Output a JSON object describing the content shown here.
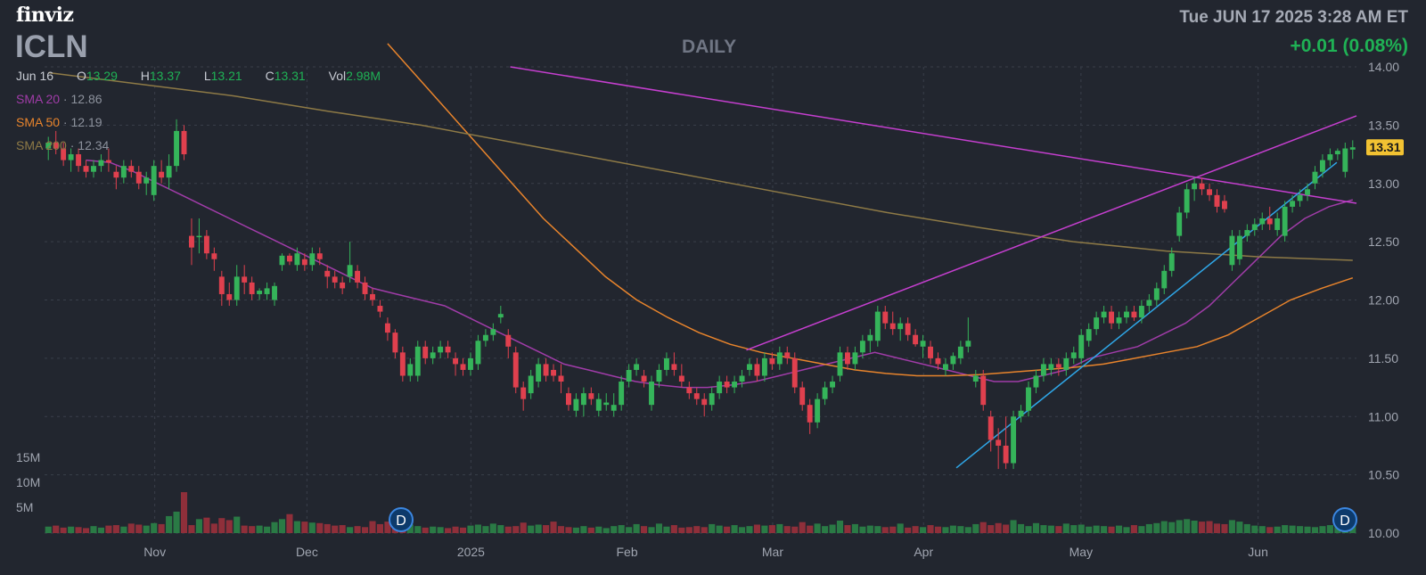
{
  "header": {
    "logo": "finviz",
    "ticker": "ICLN",
    "timeframe": "DAILY",
    "datetime": "Tue JUN 17 2025 3:28 AM ET",
    "change": "+0.01 (0.08%)"
  },
  "ohlc": {
    "date": "Jun 16",
    "o_label": "O",
    "o": "13.29",
    "h_label": "H",
    "h": "13.37",
    "l_label": "L",
    "l": "13.21",
    "c_label": "C",
    "c": "13.31",
    "vol_label": "Vol",
    "vol": "2.98M"
  },
  "sma": [
    {
      "label": "SMA 20",
      "value": "12.86",
      "color": "#a03ca8"
    },
    {
      "label": "SMA 50",
      "value": "12.19",
      "color": "#e8842c"
    },
    {
      "label": "SMA 200",
      "value": "12.34",
      "color": "#8e7a46"
    }
  ],
  "last_price_label": "13.31",
  "earnings_marker": "D",
  "colors": {
    "background": "#22262f",
    "up": "#35b45a",
    "down": "#e0404e",
    "trendline_magenta": "#c53fcf",
    "trendline_blue": "#2fa7e8",
    "price_tag": "#f2c232"
  },
  "chart_data": {
    "type": "candlestick",
    "title": "ICLN",
    "ylim": [
      10.0,
      14.0
    ],
    "y_ticks": [
      "14.00",
      "13.50",
      "13.00",
      "12.50",
      "12.00",
      "11.50",
      "11.00",
      "10.50",
      "10.00"
    ],
    "x_ticks": [
      "Nov",
      "Dec",
      "2025",
      "Feb",
      "Mar",
      "Apr",
      "May",
      "Jun"
    ],
    "volume_ticks": [
      "15M",
      "10M",
      "5M"
    ],
    "grid": true,
    "candles": [
      [
        13.3,
        13.4,
        13.2,
        13.35
      ],
      [
        13.35,
        13.45,
        13.25,
        13.3
      ],
      [
        13.3,
        13.35,
        13.15,
        13.2
      ],
      [
        13.2,
        13.3,
        13.1,
        13.25
      ],
      [
        13.25,
        13.3,
        13.1,
        13.15
      ],
      [
        13.15,
        13.2,
        13.05,
        13.1
      ],
      [
        13.1,
        13.2,
        13.05,
        13.15
      ],
      [
        13.15,
        13.25,
        13.1,
        13.2
      ],
      [
        13.2,
        13.3,
        13.1,
        13.18
      ],
      [
        13.1,
        13.15,
        12.95,
        13.05
      ],
      [
        13.05,
        13.2,
        13.0,
        13.15
      ],
      [
        13.15,
        13.2,
        13.05,
        13.1
      ],
      [
        13.1,
        13.15,
        12.95,
        13.0
      ],
      [
        13.0,
        13.1,
        12.9,
        13.05
      ],
      [
        12.9,
        13.2,
        12.85,
        13.15
      ],
      [
        13.1,
        13.2,
        13.0,
        13.05
      ],
      [
        13.05,
        13.25,
        12.95,
        13.15
      ],
      [
        13.15,
        13.55,
        13.1,
        13.45
      ],
      [
        13.45,
        13.5,
        13.2,
        13.25
      ],
      [
        12.55,
        12.7,
        12.3,
        12.45
      ],
      [
        12.55,
        12.7,
        12.4,
        12.55
      ],
      [
        12.55,
        12.6,
        12.35,
        12.4
      ],
      [
        12.4,
        12.45,
        12.25,
        12.35
      ],
      [
        12.2,
        12.25,
        11.95,
        12.05
      ],
      [
        12.05,
        12.15,
        11.95,
        12.0
      ],
      [
        12.0,
        12.3,
        11.95,
        12.2
      ],
      [
        12.2,
        12.3,
        12.05,
        12.15
      ],
      [
        12.15,
        12.2,
        12.0,
        12.05
      ],
      [
        12.05,
        12.1,
        12.0,
        12.08
      ],
      [
        12.05,
        12.15,
        12.0,
        12.1
      ],
      [
        12.0,
        12.15,
        11.95,
        12.12
      ],
      [
        12.3,
        12.4,
        12.25,
        12.38
      ],
      [
        12.38,
        12.4,
        12.3,
        12.33
      ],
      [
        12.3,
        12.45,
        12.25,
        12.4
      ],
      [
        12.35,
        12.4,
        12.25,
        12.3
      ],
      [
        12.3,
        12.45,
        12.25,
        12.4
      ],
      [
        12.4,
        12.45,
        12.3,
        12.35
      ],
      [
        12.25,
        12.3,
        12.1,
        12.2
      ],
      [
        12.2,
        12.25,
        12.1,
        12.15
      ],
      [
        12.15,
        12.2,
        12.05,
        12.1
      ],
      [
        12.2,
        12.5,
        12.15,
        12.3
      ],
      [
        12.25,
        12.3,
        12.1,
        12.15
      ],
      [
        12.15,
        12.2,
        12.0,
        12.05
      ],
      [
        12.05,
        12.1,
        11.95,
        12.0
      ],
      [
        11.95,
        12.0,
        11.85,
        11.9
      ],
      [
        11.8,
        11.85,
        11.65,
        11.72
      ],
      [
        11.72,
        11.75,
        11.5,
        11.55
      ],
      [
        11.55,
        11.6,
        11.3,
        11.35
      ],
      [
        11.35,
        11.5,
        11.3,
        11.45
      ],
      [
        11.35,
        11.65,
        11.3,
        11.6
      ],
      [
        11.6,
        11.65,
        11.45,
        11.5
      ],
      [
        11.5,
        11.6,
        11.45,
        11.55
      ],
      [
        11.55,
        11.65,
        11.5,
        11.6
      ],
      [
        11.6,
        11.65,
        11.5,
        11.55
      ],
      [
        11.5,
        11.55,
        11.35,
        11.45
      ],
      [
        11.45,
        11.5,
        11.35,
        11.4
      ],
      [
        11.4,
        11.55,
        11.35,
        11.5
      ],
      [
        11.45,
        11.7,
        11.4,
        11.65
      ],
      [
        11.65,
        11.75,
        11.6,
        11.7
      ],
      [
        11.7,
        11.8,
        11.65,
        11.75
      ],
      [
        11.85,
        11.95,
        11.8,
        11.88
      ],
      [
        11.7,
        11.75,
        11.5,
        11.6
      ],
      [
        11.55,
        11.6,
        11.2,
        11.25
      ],
      [
        11.25,
        11.3,
        11.05,
        11.15
      ],
      [
        11.2,
        11.4,
        11.15,
        11.35
      ],
      [
        11.3,
        11.5,
        11.25,
        11.45
      ],
      [
        11.45,
        11.5,
        11.3,
        11.35
      ],
      [
        11.4,
        11.45,
        11.3,
        11.35
      ],
      [
        11.35,
        11.45,
        11.2,
        11.3
      ],
      [
        11.2,
        11.25,
        11.05,
        11.1
      ],
      [
        11.05,
        11.2,
        11.0,
        11.15
      ],
      [
        11.1,
        11.25,
        11.0,
        11.2
      ],
      [
        11.2,
        11.25,
        11.1,
        11.15
      ],
      [
        11.05,
        11.2,
        11.0,
        11.15
      ],
      [
        11.1,
        11.2,
        11.05,
        11.12
      ],
      [
        11.05,
        11.2,
        11.0,
        11.1
      ],
      [
        11.1,
        11.35,
        11.05,
        11.3
      ],
      [
        11.3,
        11.45,
        11.25,
        11.4
      ],
      [
        11.4,
        11.5,
        11.35,
        11.45
      ],
      [
        11.35,
        11.4,
        11.25,
        11.3
      ],
      [
        11.1,
        11.35,
        11.05,
        11.3
      ],
      [
        11.3,
        11.45,
        11.25,
        11.4
      ],
      [
        11.4,
        11.55,
        11.35,
        11.5
      ],
      [
        11.45,
        11.55,
        11.35,
        11.4
      ],
      [
        11.35,
        11.45,
        11.25,
        11.3
      ],
      [
        11.25,
        11.3,
        11.15,
        11.2
      ],
      [
        11.2,
        11.25,
        11.1,
        11.15
      ],
      [
        11.15,
        11.2,
        11.0,
        11.1
      ],
      [
        11.1,
        11.25,
        11.05,
        11.2
      ],
      [
        11.2,
        11.35,
        11.15,
        11.3
      ],
      [
        11.3,
        11.35,
        11.2,
        11.25
      ],
      [
        11.25,
        11.35,
        11.2,
        11.3
      ],
      [
        11.3,
        11.4,
        11.25,
        11.35
      ],
      [
        11.4,
        11.5,
        11.35,
        11.45
      ],
      [
        11.45,
        11.5,
        11.3,
        11.35
      ],
      [
        11.35,
        11.55,
        11.3,
        11.5
      ],
      [
        11.5,
        11.55,
        11.4,
        11.45
      ],
      [
        11.45,
        11.6,
        11.4,
        11.55
      ],
      [
        11.55,
        11.6,
        11.45,
        11.5
      ],
      [
        11.5,
        11.55,
        11.2,
        11.25
      ],
      [
        11.25,
        11.3,
        11.05,
        11.1
      ],
      [
        11.1,
        11.15,
        10.85,
        10.95
      ],
      [
        10.95,
        11.2,
        10.9,
        11.15
      ],
      [
        11.15,
        11.3,
        11.1,
        11.25
      ],
      [
        11.25,
        11.35,
        11.2,
        11.3
      ],
      [
        11.35,
        11.6,
        11.3,
        11.55
      ],
      [
        11.55,
        11.6,
        11.4,
        11.45
      ],
      [
        11.45,
        11.6,
        11.4,
        11.55
      ],
      [
        11.55,
        11.7,
        11.5,
        11.65
      ],
      [
        11.65,
        11.75,
        11.55,
        11.7
      ],
      [
        11.65,
        11.95,
        11.6,
        11.9
      ],
      [
        11.9,
        11.95,
        11.75,
        11.8
      ],
      [
        11.8,
        11.9,
        11.7,
        11.75
      ],
      [
        11.75,
        11.85,
        11.65,
        11.8
      ],
      [
        11.8,
        11.85,
        11.65,
        11.7
      ],
      [
        11.7,
        11.75,
        11.6,
        11.62
      ],
      [
        11.6,
        11.7,
        11.5,
        11.65
      ],
      [
        11.6,
        11.65,
        11.45,
        11.5
      ],
      [
        11.5,
        11.55,
        11.4,
        11.45
      ],
      [
        11.4,
        11.5,
        11.35,
        11.45
      ],
      [
        11.45,
        11.55,
        11.4,
        11.52
      ],
      [
        11.5,
        11.65,
        11.45,
        11.6
      ],
      [
        11.6,
        11.85,
        11.55,
        11.65
      ],
      [
        11.3,
        11.4,
        11.25,
        11.35
      ],
      [
        11.35,
        11.4,
        11.05,
        11.1
      ],
      [
        11.0,
        11.05,
        10.7,
        10.8
      ],
      [
        10.8,
        10.9,
        10.55,
        10.75
      ],
      [
        10.75,
        11.0,
        10.55,
        10.6
      ],
      [
        10.6,
        11.05,
        10.55,
        11.0
      ],
      [
        11.0,
        11.1,
        10.95,
        11.05
      ],
      [
        11.05,
        11.3,
        11.0,
        11.25
      ],
      [
        11.25,
        11.4,
        11.2,
        11.35
      ],
      [
        11.35,
        11.5,
        11.3,
        11.45
      ],
      [
        11.4,
        11.5,
        11.35,
        11.45
      ],
      [
        11.45,
        11.5,
        11.35,
        11.42
      ],
      [
        11.4,
        11.55,
        11.35,
        11.5
      ],
      [
        11.5,
        11.6,
        11.45,
        11.55
      ],
      [
        11.5,
        11.75,
        11.45,
        11.7
      ],
      [
        11.65,
        11.8,
        11.6,
        11.75
      ],
      [
        11.75,
        11.9,
        11.7,
        11.85
      ],
      [
        11.85,
        11.95,
        11.8,
        11.9
      ],
      [
        11.9,
        11.95,
        11.75,
        11.8
      ],
      [
        11.8,
        11.9,
        11.75,
        11.85
      ],
      [
        11.85,
        11.95,
        11.8,
        11.9
      ],
      [
        11.9,
        11.95,
        11.82,
        11.85
      ],
      [
        11.85,
        12.0,
        11.8,
        11.95
      ],
      [
        11.95,
        12.05,
        11.9,
        12.0
      ],
      [
        12.0,
        12.15,
        11.95,
        12.1
      ],
      [
        12.1,
        12.3,
        12.05,
        12.25
      ],
      [
        12.25,
        12.45,
        12.2,
        12.4
      ],
      [
        12.55,
        12.8,
        12.5,
        12.75
      ],
      [
        12.75,
        13.0,
        12.7,
        12.95
      ],
      [
        12.95,
        13.05,
        12.85,
        13.0
      ],
      [
        13.0,
        13.05,
        12.9,
        12.95
      ],
      [
        12.95,
        13.0,
        12.85,
        12.9
      ],
      [
        12.9,
        12.95,
        12.75,
        12.8
      ],
      [
        12.85,
        12.9,
        12.75,
        12.78
      ],
      [
        12.3,
        12.6,
        12.25,
        12.55
      ],
      [
        12.35,
        12.6,
        12.3,
        12.55
      ],
      [
        12.55,
        12.65,
        12.5,
        12.6
      ],
      [
        12.6,
        12.7,
        12.55,
        12.65
      ],
      [
        12.65,
        12.75,
        12.6,
        12.7
      ],
      [
        12.7,
        12.8,
        12.6,
        12.65
      ],
      [
        12.6,
        12.75,
        12.55,
        12.7
      ],
      [
        12.55,
        12.85,
        12.5,
        12.8
      ],
      [
        12.8,
        12.9,
        12.75,
        12.85
      ],
      [
        12.85,
        12.95,
        12.8,
        12.9
      ],
      [
        12.9,
        13.0,
        12.85,
        12.95
      ],
      [
        13.0,
        13.15,
        12.95,
        13.1
      ],
      [
        13.1,
        13.25,
        13.05,
        13.2
      ],
      [
        13.2,
        13.3,
        13.15,
        13.25
      ],
      [
        13.25,
        13.3,
        13.2,
        13.28
      ],
      [
        13.1,
        13.35,
        13.05,
        13.3
      ],
      [
        13.29,
        13.37,
        13.21,
        13.31
      ]
    ],
    "volume_millions": [
      1.3,
      1.5,
      1.1,
      1.3,
      1.2,
      1.0,
      1.4,
      1.1,
      1.5,
      1.6,
      1.3,
      1.9,
      1.7,
      1.5,
      2.0,
      1.8,
      3.4,
      4.3,
      8.2,
      1.6,
      2.8,
      3.1,
      1.9,
      3.0,
      2.6,
      3.3,
      1.5,
      1.4,
      1.5,
      1.3,
      2.2,
      2.8,
      3.8,
      2.4,
      2.3,
      2.1,
      2.0,
      1.8,
      1.5,
      1.6,
      1.2,
      1.4,
      1.2,
      2.4,
      1.8,
      2.3,
      3.1,
      2.0,
      1.7,
      1.4,
      1.1,
      1.3,
      1.2,
      1.0,
      1.3,
      1.1,
      1.5,
      1.7,
      1.4,
      1.9,
      1.6,
      1.3,
      1.4,
      2.1,
      1.5,
      1.7,
      1.6,
      2.3,
      1.4,
      1.2,
      1.1,
      1.4,
      1.1,
      1.3,
      1.0,
      1.4,
      1.6,
      1.2,
      1.8,
      1.4,
      1.2,
      1.9,
      1.3,
      1.6,
      1.1,
      1.2,
      1.4,
      1.2,
      1.8,
      1.5,
      1.3,
      1.6,
      1.2,
      1.4,
      1.7,
      1.5,
      1.6,
      1.8,
      1.4,
      1.3,
      2.2,
      1.5,
      1.9,
      1.4,
      1.7,
      2.5,
      1.6,
      1.8,
      1.3,
      1.5,
      1.4,
      1.2,
      1.3,
      1.9,
      1.1,
      1.4,
      1.2,
      1.6,
      1.3,
      1.2,
      1.5,
      1.4,
      1.2,
      1.8,
      2.2,
      1.6,
      2.0,
      1.7,
      2.6,
      1.8,
      1.4,
      2.0,
      1.6,
      1.5,
      1.4,
      1.9,
      1.6,
      1.7,
      1.3,
      1.5,
      1.4,
      1.3,
      1.5,
      1.2,
      1.6,
      1.4,
      1.8,
      2.0,
      2.4,
      2.2,
      2.6,
      2.8,
      2.5,
      2.3,
      2.4,
      1.9,
      1.8,
      2.6,
      2.3,
      1.8,
      1.5,
      1.4,
      1.2,
      1.3,
      1.6,
      1.5,
      1.4,
      1.3,
      1.2,
      1.4,
      1.6,
      1.5,
      1.8,
      2.2,
      3.0
    ],
    "series": [
      {
        "name": "SMA 20",
        "values": [
          13.2,
          13.18,
          13.1,
          13.0,
          12.9,
          12.8,
          12.7,
          12.6,
          12.5,
          12.4,
          12.3,
          12.2,
          12.1,
          12.05,
          12.0,
          11.95,
          11.85,
          11.75,
          11.65,
          11.55,
          11.45,
          11.4,
          11.35,
          11.3,
          11.27,
          11.25,
          11.25,
          11.27,
          11.3,
          11.35,
          11.4,
          11.45,
          11.5,
          11.55,
          11.5,
          11.45,
          11.4,
          11.35,
          11.3,
          11.3,
          11.35,
          11.4,
          11.5,
          11.55,
          11.6,
          11.7,
          11.8,
          11.95,
          12.15,
          12.35,
          12.55,
          12.7,
          12.8,
          12.86
        ]
      },
      {
        "name": "SMA 50",
        "values": [
          14.2,
          13.9,
          13.6,
          13.3,
          13.0,
          12.7,
          12.45,
          12.2,
          12.0,
          11.85,
          11.72,
          11.62,
          11.55,
          11.5,
          11.45,
          11.4,
          11.37,
          11.35,
          11.35,
          11.36,
          11.38,
          11.4,
          11.42,
          11.45,
          11.5,
          11.55,
          11.6,
          11.7,
          11.85,
          12.0,
          12.1,
          12.19
        ]
      },
      {
        "name": "SMA 200",
        "values": [
          13.95,
          13.85,
          13.75,
          13.62,
          13.5,
          13.35,
          13.2,
          13.05,
          12.9,
          12.75,
          12.62,
          12.5,
          12.42,
          12.37,
          12.34
        ]
      }
    ]
  }
}
